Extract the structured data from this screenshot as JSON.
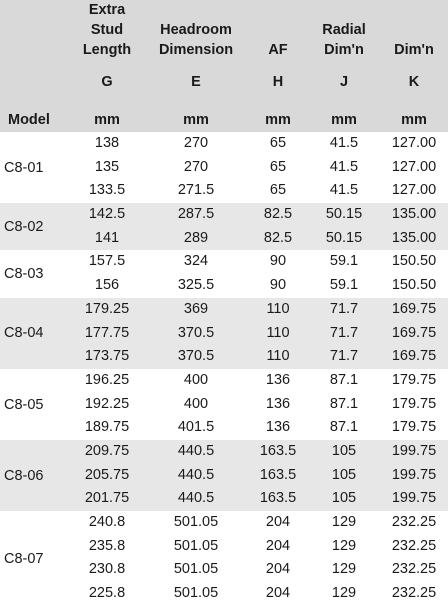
{
  "headers": {
    "model": "Model",
    "cols": [
      {
        "lines": [
          "Extra",
          "Stud",
          "Length"
        ],
        "symbol": "G",
        "unit": "mm"
      },
      {
        "lines": [
          "Headroom",
          "Dimension"
        ],
        "symbol": "E",
        "unit": "mm"
      },
      {
        "lines": [
          "AF"
        ],
        "symbol": "H",
        "unit": "mm"
      },
      {
        "lines": [
          "Radial",
          "Dim'n"
        ],
        "symbol": "J",
        "unit": "mm"
      },
      {
        "lines": [
          "Dim'n"
        ],
        "symbol": "K",
        "unit": "mm"
      }
    ]
  },
  "groups": [
    {
      "model": "C8-01",
      "rows": [
        [
          "138",
          "270",
          "65",
          "41.5",
          "127.00"
        ],
        [
          "135",
          "270",
          "65",
          "41.5",
          "127.00"
        ],
        [
          "133.5",
          "271.5",
          "65",
          "41.5",
          "127.00"
        ]
      ]
    },
    {
      "model": "C8-02",
      "rows": [
        [
          "142.5",
          "287.5",
          "82.5",
          "50.15",
          "135.00"
        ],
        [
          "141",
          "289",
          "82.5",
          "50.15",
          "135.00"
        ]
      ]
    },
    {
      "model": "C8-03",
      "rows": [
        [
          "157.5",
          "324",
          "90",
          "59.1",
          "150.50"
        ],
        [
          "156",
          "325.5",
          "90",
          "59.1",
          "150.50"
        ]
      ]
    },
    {
      "model": "C8-04",
      "rows": [
        [
          "179.25",
          "369",
          "110",
          "71.7",
          "169.75"
        ],
        [
          "177.75",
          "370.5",
          "110",
          "71.7",
          "169.75"
        ],
        [
          "173.75",
          "370.5",
          "110",
          "71.7",
          "169.75"
        ]
      ]
    },
    {
      "model": "C8-05",
      "rows": [
        [
          "196.25",
          "400",
          "136",
          "87.1",
          "179.75"
        ],
        [
          "192.25",
          "400",
          "136",
          "87.1",
          "179.75"
        ],
        [
          "189.75",
          "401.5",
          "136",
          "87.1",
          "179.75"
        ]
      ]
    },
    {
      "model": "C8-06",
      "rows": [
        [
          "209.75",
          "440.5",
          "163.5",
          "105",
          "199.75"
        ],
        [
          "205.75",
          "440.5",
          "163.5",
          "105",
          "199.75"
        ],
        [
          "201.75",
          "440.5",
          "163.5",
          "105",
          "199.75"
        ]
      ]
    },
    {
      "model": "C8-07",
      "rows": [
        [
          "240.8",
          "501.05",
          "204",
          "129",
          "232.25"
        ],
        [
          "235.8",
          "501.05",
          "204",
          "129",
          "232.25"
        ],
        [
          "230.8",
          "501.05",
          "204",
          "129",
          "232.25"
        ],
        [
          "225.8",
          "501.05",
          "204",
          "129",
          "232.25"
        ]
      ]
    }
  ]
}
